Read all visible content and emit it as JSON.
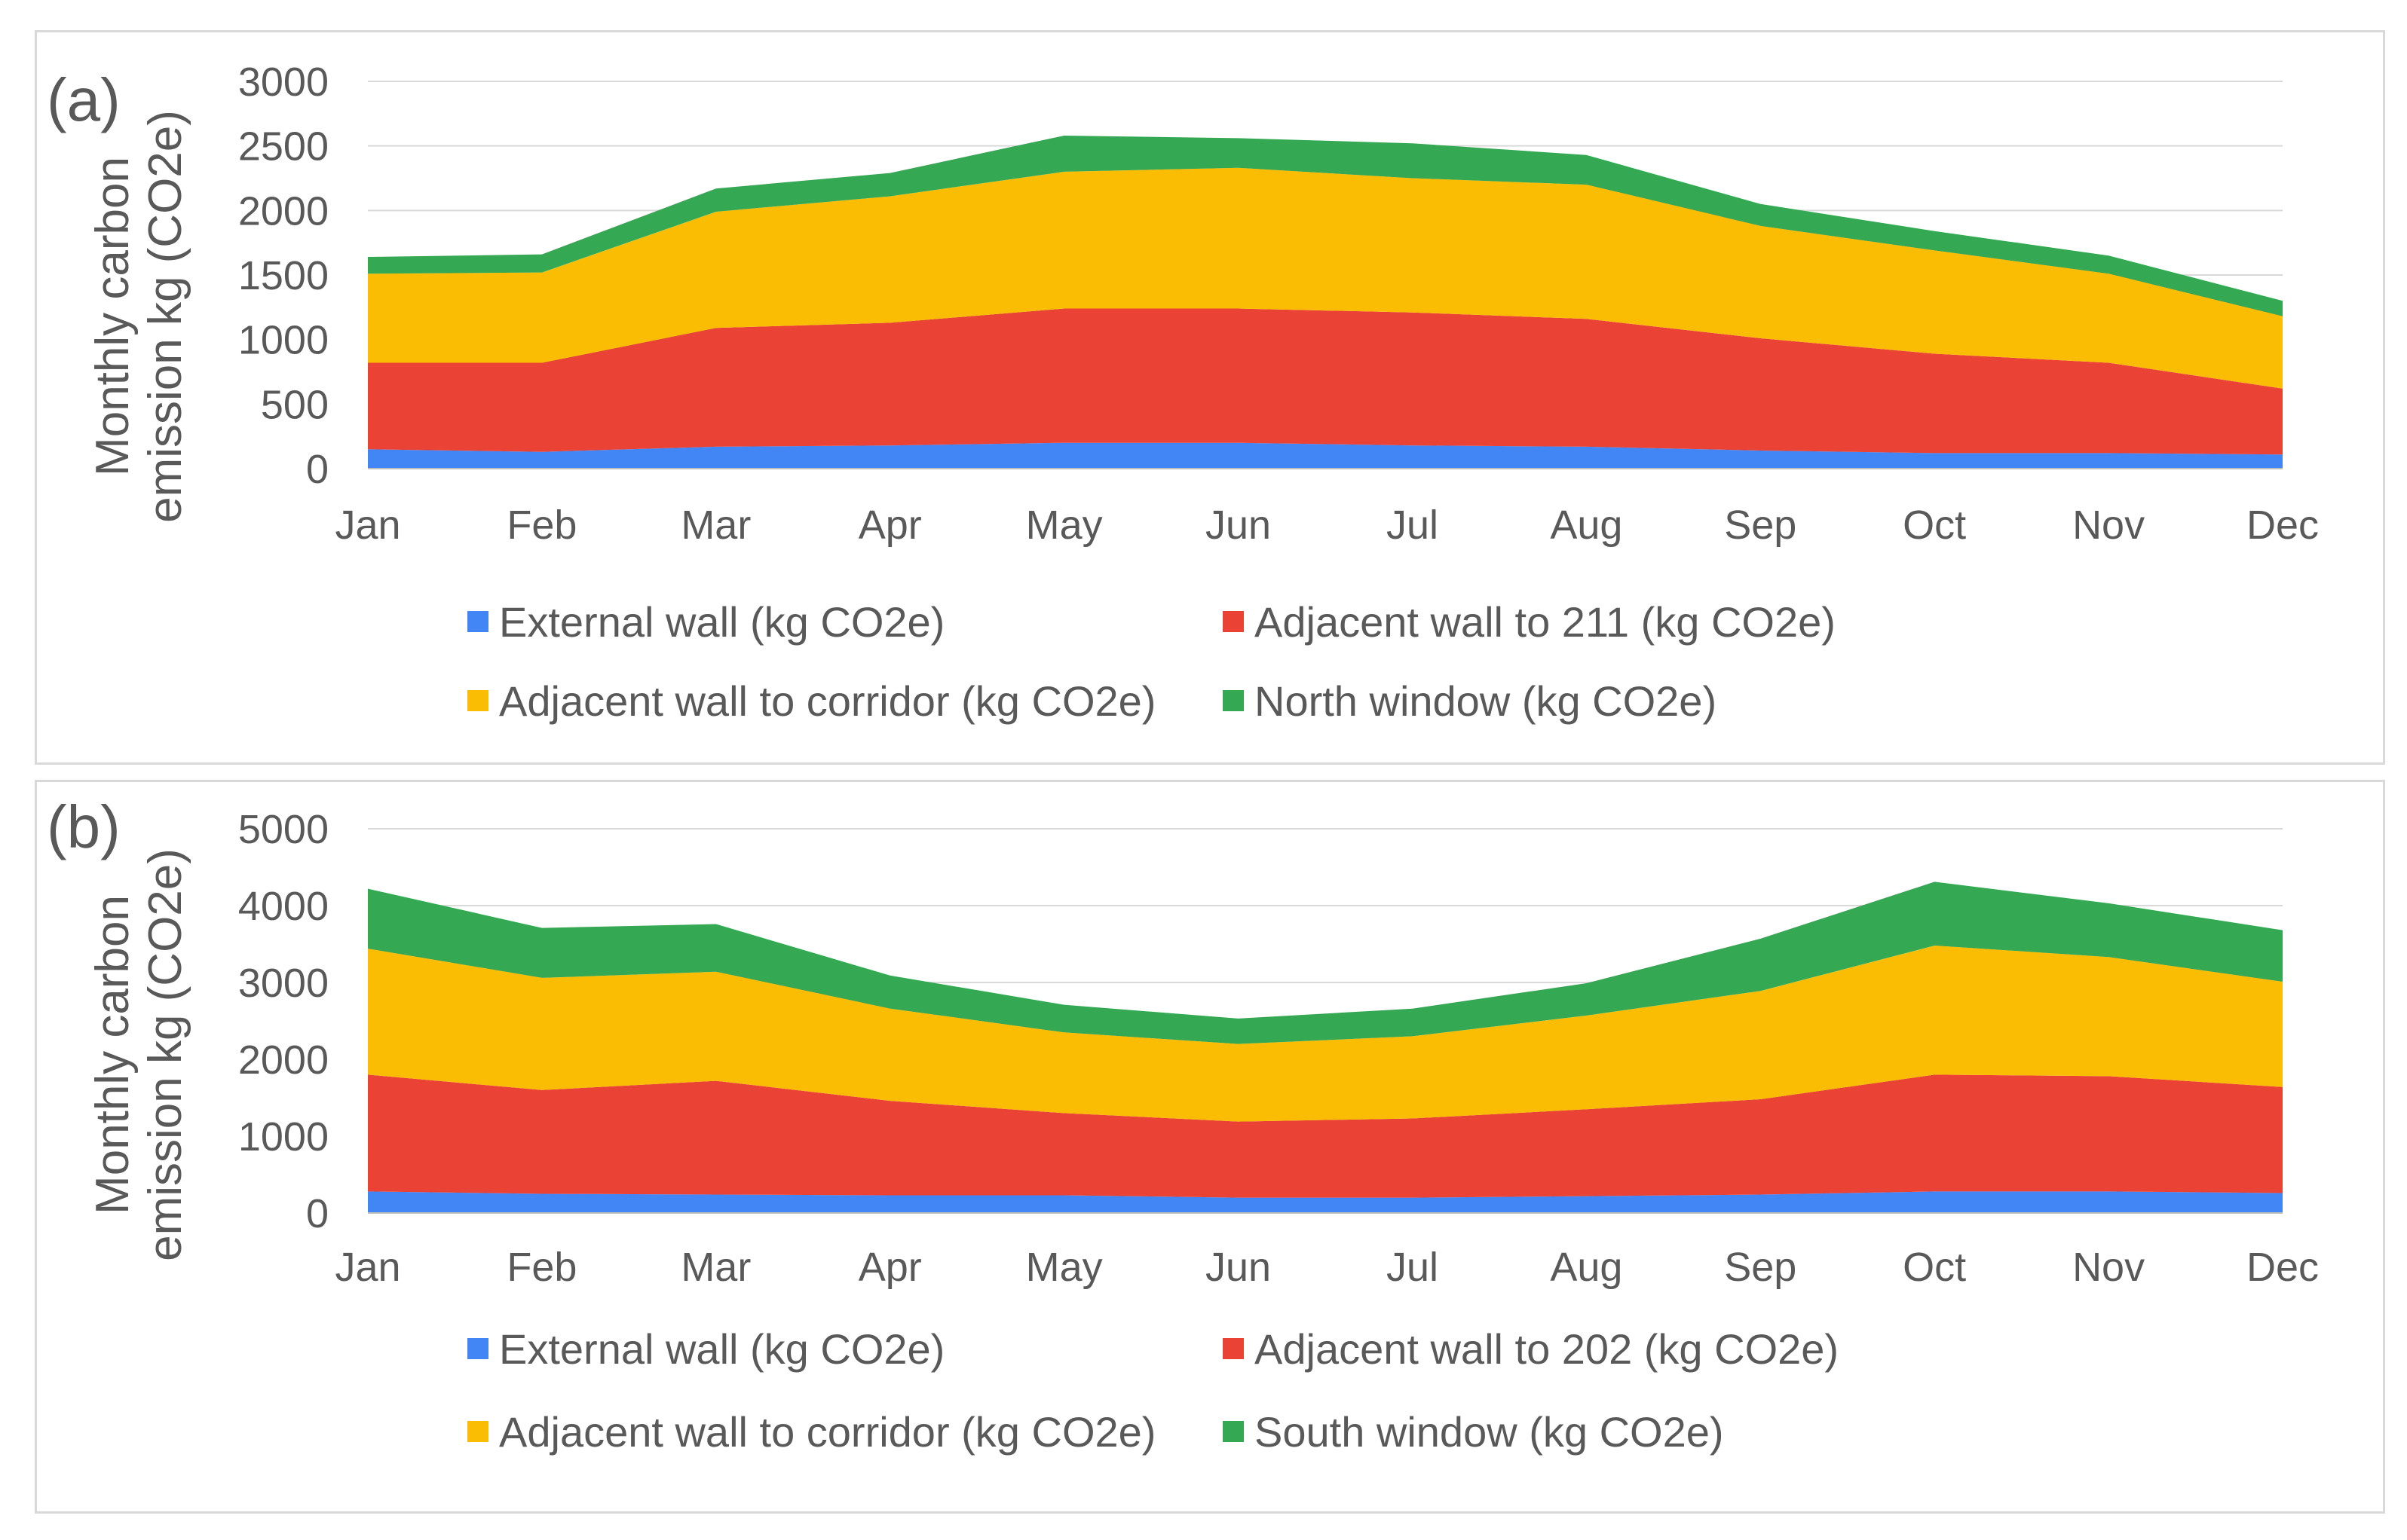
{
  "chart_data": [
    {
      "type": "area",
      "stacked": true,
      "panel_label": "(a)",
      "ylabel_line1": "Monthly carbon",
      "ylabel_line2": "emission kg (CO2e)",
      "ylim": [
        0,
        3000
      ],
      "yticks": [
        "0",
        "500",
        "1000",
        "1500",
        "2000",
        "2500",
        "3000"
      ],
      "ytick_values": [
        0,
        500,
        1000,
        1500,
        2000,
        2500,
        3000
      ],
      "categories": [
        "Jan",
        "Feb",
        "Mar",
        "Apr",
        "May",
        "Jun",
        "Jul",
        "Aug",
        "Sep",
        "Oct",
        "Nov",
        "Dec"
      ],
      "grid": true,
      "legend_position": "bottom",
      "series": [
        {
          "name": "External wall (kg CO2e)",
          "color": "#4285f4",
          "values": [
            150,
            130,
            170,
            180,
            200,
            200,
            180,
            170,
            140,
            120,
            120,
            110
          ]
        },
        {
          "name": "Adjacent wall to 211 (kg CO2e)",
          "color": "#ea4335",
          "values": [
            670,
            690,
            920,
            950,
            1040,
            1040,
            1030,
            990,
            870,
            770,
            700,
            510
          ]
        },
        {
          "name": "Adjacent wall to corridor (kg CO2e)",
          "color": "#fbbc04",
          "values": [
            690,
            700,
            900,
            980,
            1060,
            1090,
            1040,
            1040,
            870,
            800,
            690,
            560
          ]
        },
        {
          "name": "North window (kg CO2e)",
          "color": "#34a853",
          "values": [
            130,
            140,
            180,
            180,
            280,
            230,
            270,
            230,
            170,
            150,
            140,
            120
          ]
        }
      ]
    },
    {
      "type": "area",
      "stacked": true,
      "panel_label": "(b)",
      "ylabel_line1": "Monthly carbon",
      "ylabel_line2": "emission kg (CO2e)",
      "ylim": [
        0,
        5000
      ],
      "yticks": [
        "0",
        "1000",
        "2000",
        "3000",
        "4000",
        "5000"
      ],
      "ytick_values": [
        0,
        1000,
        2000,
        3000,
        4000,
        5000
      ],
      "categories": [
        "Jan",
        "Feb",
        "Mar",
        "Apr",
        "May",
        "Jun",
        "Jul",
        "Aug",
        "Sep",
        "Oct",
        "Nov",
        "Dec"
      ],
      "grid": true,
      "legend_position": "bottom",
      "series": [
        {
          "name": "External wall (kg CO2e)",
          "color": "#4285f4",
          "values": [
            280,
            250,
            240,
            230,
            230,
            200,
            200,
            220,
            240,
            280,
            280,
            260
          ]
        },
        {
          "name": "Adjacent wall to 202 (kg CO2e)",
          "color": "#ea4335",
          "values": [
            1520,
            1350,
            1480,
            1230,
            1070,
            990,
            1030,
            1130,
            1240,
            1520,
            1500,
            1380
          ]
        },
        {
          "name": "Adjacent wall to corridor (kg CO2e)",
          "color": "#fbbc04",
          "values": [
            1640,
            1460,
            1420,
            1200,
            1050,
            1010,
            1070,
            1220,
            1410,
            1680,
            1550,
            1370
          ]
        },
        {
          "name": "South window (kg CO2e)",
          "color": "#34a853",
          "values": [
            780,
            650,
            620,
            430,
            360,
            330,
            360,
            420,
            680,
            830,
            700,
            670
          ]
        }
      ]
    }
  ]
}
